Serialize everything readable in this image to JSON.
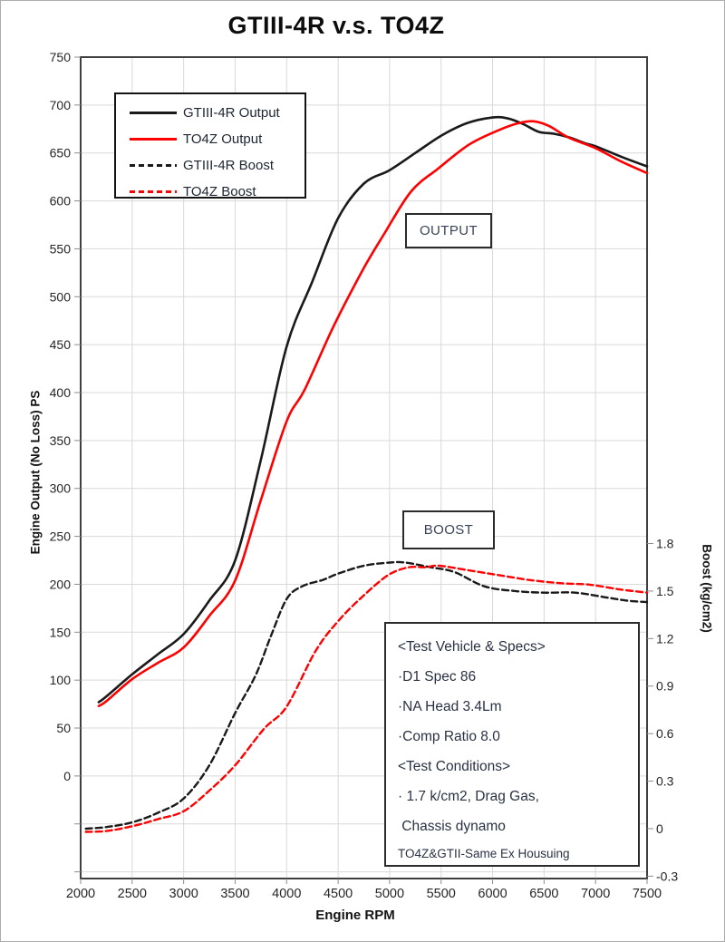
{
  "title": "GTIII-4R v.s. TO4Z",
  "annotations": {
    "output_label": "OUTPUT",
    "boost_label": "BOOST"
  },
  "legend": {
    "items": [
      {
        "label": "GTIII-4R Output"
      },
      {
        "label": "TO4Z Output"
      },
      {
        "label": "GTIII-4R Boost"
      },
      {
        "label": "TO4Z Boost"
      }
    ]
  },
  "test_box": {
    "lines": [
      "<Test Vehicle & Specs>",
      "·D1 Spec 86",
      "·NA Head 3.4Lm",
      "·Comp Ratio 8.0",
      "<Test Conditions>",
      "· 1.7 k/cm2, Drag Gas,",
      " Chassis dynamo",
      "TO4Z&GTII-Same Ex Housuing"
    ]
  },
  "chart_data": {
    "type": "line",
    "title": "GTIII-4R v.s. TO4Z",
    "xlabel": "Engine RPM",
    "ylabel_left": "Engine Output (No Loss) PS",
    "ylabel_right": "Boost (kg/cm2)",
    "grid": true,
    "grid_color": "#d9d9d9",
    "tick_color": "#8c8c8c",
    "plot_border_color": "#3f3f3f",
    "label_color": "#262626",
    "x_range": [
      2000,
      7500
    ],
    "y_left_range": [
      -107,
      750
    ],
    "y_right_range": [
      -0.315,
      4.871
    ],
    "x_ticks": [
      2000,
      2500,
      3000,
      3500,
      4000,
      4500,
      5000,
      5500,
      6000,
      6500,
      7000,
      7500
    ],
    "y_left_ticks": [
      750,
      700,
      650,
      600,
      550,
      500,
      450,
      400,
      350,
      300,
      250,
      200,
      150,
      100,
      50,
      0
    ],
    "y_left_gridlines": [
      750,
      700,
      650,
      600,
      550,
      500,
      450,
      400,
      350,
      300,
      250,
      200,
      150,
      100,
      50,
      0,
      -50,
      -100
    ],
    "y_right_ticks": [
      1.8,
      1.5,
      1.2,
      0.9,
      0.6,
      0.3,
      0,
      -0.3
    ],
    "y_right_tick_labels": [
      "1.8",
      "1.5",
      "1.2",
      "0.9",
      "0.6",
      "0.3",
      "0",
      "-0.3"
    ],
    "legend_position": "top-left",
    "series": [
      {
        "name": "GTIII-4R Output",
        "axis": "left",
        "color": "#1a1a1a",
        "dash": null,
        "points": [
          [
            2175,
            77
          ],
          [
            2250,
            83
          ],
          [
            2500,
            106
          ],
          [
            2750,
            127
          ],
          [
            3000,
            148
          ],
          [
            3250,
            183
          ],
          [
            3500,
            225
          ],
          [
            3750,
            330
          ],
          [
            4000,
            448
          ],
          [
            4250,
            516
          ],
          [
            4500,
            582
          ],
          [
            4750,
            618
          ],
          [
            5000,
            632
          ],
          [
            5250,
            650
          ],
          [
            5500,
            668
          ],
          [
            5750,
            681
          ],
          [
            6000,
            687
          ],
          [
            6150,
            686
          ],
          [
            6300,
            680
          ],
          [
            6450,
            672
          ],
          [
            6600,
            670
          ],
          [
            6750,
            666
          ],
          [
            6900,
            660
          ],
          [
            7000,
            657
          ],
          [
            7250,
            646
          ],
          [
            7500,
            636
          ]
        ]
      },
      {
        "name": "TO4Z Output",
        "axis": "left",
        "color": "#fe0000",
        "dash": null,
        "points": [
          [
            2175,
            73
          ],
          [
            2250,
            78
          ],
          [
            2500,
            101
          ],
          [
            2750,
            118
          ],
          [
            3000,
            134
          ],
          [
            3250,
            167
          ],
          [
            3500,
            204
          ],
          [
            3750,
            288
          ],
          [
            4000,
            370
          ],
          [
            4175,
            403
          ],
          [
            4455,
            469
          ],
          [
            4745,
            529
          ],
          [
            4950,
            566
          ],
          [
            5210,
            610
          ],
          [
            5475,
            634
          ],
          [
            5775,
            659
          ],
          [
            6065,
            674
          ],
          [
            6250,
            681
          ],
          [
            6400,
            683
          ],
          [
            6550,
            678
          ],
          [
            6740,
            666
          ],
          [
            7000,
            655
          ],
          [
            7250,
            641
          ],
          [
            7500,
            629
          ]
        ]
      },
      {
        "name": "GTIII-4R Boost",
        "axis": "right",
        "color": "#1a1a1a",
        "dash": [
          7,
          4
        ],
        "points": [
          [
            2050,
            0.0
          ],
          [
            2250,
            0.01
          ],
          [
            2500,
            0.04
          ],
          [
            2750,
            0.1
          ],
          [
            3000,
            0.19
          ],
          [
            3250,
            0.4
          ],
          [
            3500,
            0.73
          ],
          [
            3700,
            0.97
          ],
          [
            3850,
            1.22
          ],
          [
            4000,
            1.45
          ],
          [
            4150,
            1.53
          ],
          [
            4350,
            1.57
          ],
          [
            4500,
            1.61
          ],
          [
            4750,
            1.66
          ],
          [
            5000,
            1.68
          ],
          [
            5150,
            1.68
          ],
          [
            5400,
            1.65
          ],
          [
            5630,
            1.62
          ],
          [
            5920,
            1.53
          ],
          [
            6220,
            1.5
          ],
          [
            6500,
            1.49
          ],
          [
            6800,
            1.49
          ],
          [
            7100,
            1.46
          ],
          [
            7300,
            1.44
          ],
          [
            7500,
            1.43
          ]
        ]
      },
      {
        "name": "TO4Z Boost",
        "axis": "right",
        "color": "#fe0000",
        "dash": [
          7,
          4
        ],
        "points": [
          [
            2050,
            -0.02
          ],
          [
            2250,
            -0.015
          ],
          [
            2500,
            0.015
          ],
          [
            2750,
            0.06
          ],
          [
            3000,
            0.11
          ],
          [
            3250,
            0.24
          ],
          [
            3500,
            0.4
          ],
          [
            3780,
            0.63
          ],
          [
            4000,
            0.77
          ],
          [
            4280,
            1.12
          ],
          [
            4500,
            1.31
          ],
          [
            4745,
            1.47
          ],
          [
            4985,
            1.6
          ],
          [
            5185,
            1.65
          ],
          [
            5350,
            1.65
          ],
          [
            5480,
            1.66
          ],
          [
            5775,
            1.63
          ],
          [
            6065,
            1.6
          ],
          [
            6355,
            1.57
          ],
          [
            6655,
            1.55
          ],
          [
            6945,
            1.54
          ],
          [
            7240,
            1.51
          ],
          [
            7500,
            1.49
          ]
        ]
      }
    ]
  }
}
